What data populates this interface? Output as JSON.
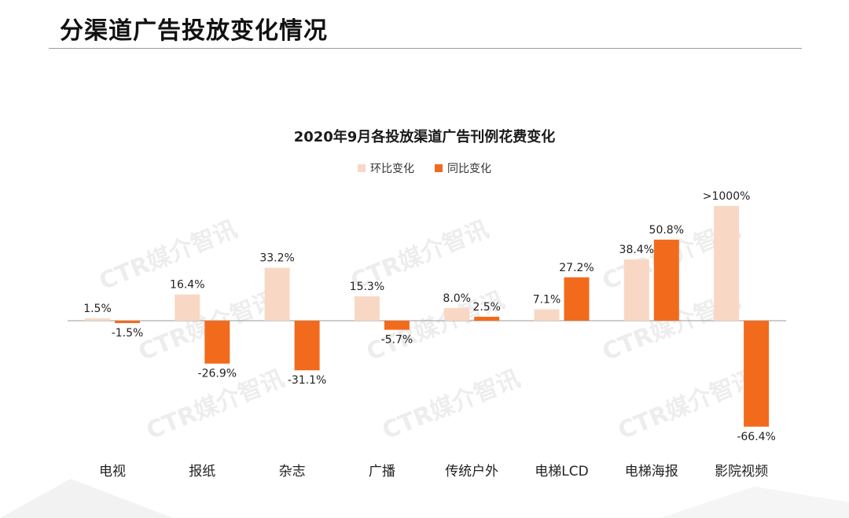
{
  "page": {
    "title": "分渠道广告投放变化情况"
  },
  "watermark_text": "CTR媒介智讯",
  "colors": {
    "mom": "#F8D8C4",
    "yoy": "#F26B1D",
    "axis": "#9a9a9a",
    "label": "#222222"
  },
  "chart_data": {
    "type": "bar",
    "title": "2020年9月各投放渠道广告刊例花费变化",
    "categories": [
      "电视",
      "报纸",
      "杂志",
      "广播",
      "传统户外",
      "电梯LCD",
      "电梯海报",
      "影院视频"
    ],
    "series": [
      {
        "name": "环比变化",
        "values": [
          1.5,
          16.4,
          33.2,
          15.3,
          8.0,
          7.1,
          38.4,
          1000
        ],
        "labels": [
          "1.5%",
          "16.4%",
          "33.2%",
          "15.3%",
          "8.0%",
          "7.1%",
          "38.4%",
          ">1000%"
        ]
      },
      {
        "name": "同比变化",
        "values": [
          -1.5,
          -26.9,
          -31.1,
          -5.7,
          2.5,
          27.2,
          50.8,
          -66.4
        ],
        "labels": [
          "-1.5%",
          "-26.9%",
          "-31.1%",
          "-5.7%",
          "2.5%",
          "27.2%",
          "50.8%",
          "-66.4%"
        ]
      }
    ],
    "legend_position": "top",
    "grid": false,
    "ylabel": "",
    "xlabel": ""
  }
}
